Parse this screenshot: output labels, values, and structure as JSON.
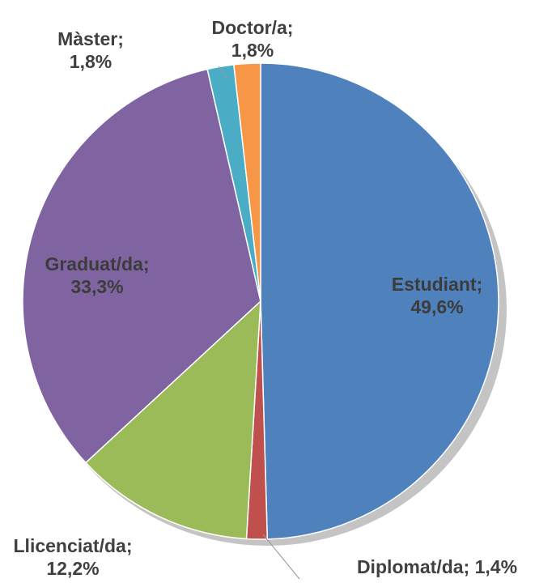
{
  "chart_data": {
    "type": "pie",
    "categories": [
      "Estudiant;",
      "Diplomat/da;",
      "Llicenciat/da;",
      "Graduat/da;",
      "Màster;",
      "Doctor/a;"
    ],
    "values": [
      49.6,
      1.4,
      12.2,
      33.3,
      1.8,
      1.8
    ],
    "value_labels": [
      "49,6%",
      "1,4%",
      "12,2%",
      "33,3%",
      "1,8%",
      "1,8%"
    ],
    "colors": [
      "#4f81bd",
      "#c0504d",
      "#9bbb59",
      "#8064a2",
      "#4bacc6",
      "#f79646"
    ]
  }
}
